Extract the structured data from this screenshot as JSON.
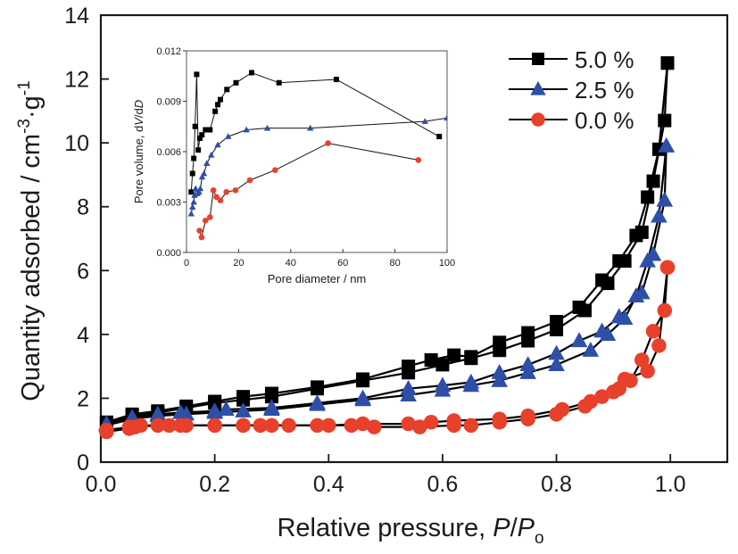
{
  "chart_data": [
    {
      "type": "line",
      "id": "main",
      "title": "",
      "xlabel": "Relative pressure, P/Po",
      "xlabel_parts": {
        "prefix": "Relative pressure, ",
        "p": "P",
        "slash": "/",
        "p2": "P",
        "sub": "o"
      },
      "ylabel": "Quantity adsorbed / cm-3·g-1",
      "ylabel_parts": {
        "main": "Quantity adsorbed / cm",
        "sup1": "-3",
        "mid": "·g",
        "sup2": "-1"
      },
      "xlim": [
        0,
        1.1
      ],
      "ylim": [
        0,
        14
      ],
      "xticks": [
        0.0,
        0.2,
        0.4,
        0.6,
        0.8,
        1.0
      ],
      "xtick_labels": [
        "0.0",
        "0.2",
        "0.4",
        "0.6",
        "0.8",
        "1.0"
      ],
      "yticks": [
        0,
        2,
        4,
        6,
        8,
        10,
        12,
        14
      ],
      "ytick_labels": [
        "0",
        "2",
        "4",
        "6",
        "8",
        "10",
        "12",
        "14"
      ],
      "grid": false,
      "legend_position": "top-right",
      "series": [
        {
          "name": "5.0 %",
          "marker": "square",
          "color": "#000000",
          "adsorption": [
            [
              0.01,
              1.2
            ],
            [
              0.055,
              1.45
            ],
            [
              0.1,
              1.55
            ],
            [
              0.15,
              1.7
            ],
            [
              0.2,
              1.85
            ],
            [
              0.25,
              1.95
            ],
            [
              0.3,
              2.05
            ],
            [
              0.38,
              2.3
            ],
            [
              0.46,
              2.55
            ],
            [
              0.54,
              2.8
            ],
            [
              0.6,
              3.05
            ],
            [
              0.65,
              3.25
            ],
            [
              0.7,
              3.5
            ],
            [
              0.75,
              3.8
            ],
            [
              0.8,
              4.15
            ],
            [
              0.85,
              4.75
            ],
            [
              0.89,
              5.6
            ],
            [
              0.92,
              6.3
            ],
            [
              0.95,
              7.2
            ],
            [
              0.97,
              8.8
            ],
            [
              0.99,
              10.7
            ],
            [
              0.995,
              12.5
            ]
          ],
          "desorption": [
            [
              0.995,
              12.5
            ],
            [
              0.98,
              9.8
            ],
            [
              0.96,
              8.3
            ],
            [
              0.94,
              7.1
            ],
            [
              0.91,
              6.3
            ],
            [
              0.88,
              5.7
            ],
            [
              0.84,
              4.85
            ],
            [
              0.8,
              4.4
            ],
            [
              0.75,
              4.05
            ],
            [
              0.7,
              3.75
            ],
            [
              0.65,
              3.3
            ],
            [
              0.62,
              3.35
            ],
            [
              0.58,
              3.2
            ],
            [
              0.54,
              3.0
            ],
            [
              0.46,
              2.6
            ],
            [
              0.38,
              2.35
            ],
            [
              0.3,
              2.15
            ],
            [
              0.25,
              2.05
            ],
            [
              0.2,
              1.9
            ],
            [
              0.15,
              1.75
            ],
            [
              0.1,
              1.6
            ],
            [
              0.055,
              1.5
            ],
            [
              0.01,
              1.25
            ]
          ]
        },
        {
          "name": "2.5 %",
          "marker": "triangle",
          "color": "#2e4fa8",
          "adsorption": [
            [
              0.01,
              1.15
            ],
            [
              0.055,
              1.35
            ],
            [
              0.1,
              1.45
            ],
            [
              0.15,
              1.5
            ],
            [
              0.2,
              1.55
            ],
            [
              0.25,
              1.6
            ],
            [
              0.3,
              1.65
            ],
            [
              0.38,
              1.8
            ],
            [
              0.46,
              1.95
            ],
            [
              0.54,
              2.1
            ],
            [
              0.6,
              2.25
            ],
            [
              0.65,
              2.4
            ],
            [
              0.7,
              2.55
            ],
            [
              0.75,
              2.8
            ],
            [
              0.8,
              3.05
            ],
            [
              0.86,
              3.5
            ],
            [
              0.89,
              4.0
            ],
            [
              0.92,
              4.5
            ],
            [
              0.94,
              5.2
            ],
            [
              0.96,
              6.3
            ],
            [
              0.98,
              7.7
            ],
            [
              0.993,
              9.9
            ]
          ],
          "desorption": [
            [
              0.993,
              9.9
            ],
            [
              0.99,
              8.2
            ],
            [
              0.97,
              6.5
            ],
            [
              0.95,
              5.3
            ],
            [
              0.91,
              4.55
            ],
            [
              0.88,
              4.1
            ],
            [
              0.84,
              3.8
            ],
            [
              0.8,
              3.4
            ],
            [
              0.75,
              3.05
            ],
            [
              0.7,
              2.8
            ],
            [
              0.65,
              2.5
            ],
            [
              0.6,
              2.4
            ],
            [
              0.54,
              2.3
            ],
            [
              0.46,
              2.0
            ],
            [
              0.38,
              1.85
            ],
            [
              0.3,
              1.7
            ],
            [
              0.22,
              1.65
            ],
            [
              0.2,
              1.6
            ],
            [
              0.14,
              1.55
            ],
            [
              0.1,
              1.5
            ],
            [
              0.055,
              1.4
            ],
            [
              0.01,
              1.2
            ]
          ]
        },
        {
          "name": "0.0 %",
          "marker": "circle",
          "color": "#e8402a",
          "adsorption": [
            [
              0.01,
              0.95
            ],
            [
              0.05,
              1.05
            ],
            [
              0.06,
              1.1
            ],
            [
              0.1,
              1.15
            ],
            [
              0.15,
              1.15
            ],
            [
              0.2,
              1.15
            ],
            [
              0.25,
              1.15
            ],
            [
              0.3,
              1.15
            ],
            [
              0.38,
              1.15
            ],
            [
              0.44,
              1.15
            ],
            [
              0.48,
              1.1
            ],
            [
              0.56,
              1.1
            ],
            [
              0.62,
              1.15
            ],
            [
              0.65,
              1.15
            ],
            [
              0.7,
              1.25
            ],
            [
              0.75,
              1.35
            ],
            [
              0.8,
              1.5
            ],
            [
              0.85,
              1.75
            ],
            [
              0.88,
              2.05
            ],
            [
              0.91,
              2.3
            ],
            [
              0.93,
              2.55
            ],
            [
              0.95,
              3.2
            ],
            [
              0.97,
              4.1
            ],
            [
              0.99,
              4.75
            ],
            [
              0.995,
              6.1
            ]
          ],
          "desorption": [
            [
              0.995,
              6.1
            ],
            [
              0.98,
              3.65
            ],
            [
              0.96,
              2.85
            ],
            [
              0.92,
              2.6
            ],
            [
              0.9,
              2.2
            ],
            [
              0.86,
              1.9
            ],
            [
              0.81,
              1.65
            ],
            [
              0.75,
              1.45
            ],
            [
              0.7,
              1.35
            ],
            [
              0.62,
              1.3
            ],
            [
              0.58,
              1.25
            ],
            [
              0.54,
              1.2
            ],
            [
              0.46,
              1.2
            ],
            [
              0.4,
              1.15
            ],
            [
              0.33,
              1.15
            ],
            [
              0.28,
              1.15
            ],
            [
              0.25,
              1.15
            ],
            [
              0.2,
              1.15
            ],
            [
              0.14,
              1.15
            ],
            [
              0.12,
              1.15
            ],
            [
              0.07,
              1.15
            ],
            [
              0.05,
              1.1
            ],
            [
              0.01,
              1.0
            ]
          ]
        }
      ]
    },
    {
      "type": "line",
      "id": "inset",
      "title": "",
      "xlabel": "Pore diameter / nm",
      "ylabel": "Pore volume, dV/dD",
      "ylabel_parts": {
        "main": "Pore volume, d",
        "v": "V",
        "slash": "/d",
        "d": "D"
      },
      "xlim": [
        0,
        100
      ],
      "ylim": [
        0,
        0.012
      ],
      "xticks": [
        0,
        20,
        40,
        60,
        80,
        100
      ],
      "xtick_labels": [
        "0",
        "20",
        "40",
        "60",
        "80",
        "100"
      ],
      "yticks": [
        0,
        0.003,
        0.006,
        0.009,
        0.012
      ],
      "ytick_labels": [
        "0.000",
        "0.003",
        "0.006",
        "0.009",
        "0.012"
      ],
      "grid": false,
      "legend_position": "none",
      "series": [
        {
          "name": "5.0 %",
          "marker": "square",
          "color": "#000000",
          "points": [
            [
              1.8,
              0.0036
            ],
            [
              2.3,
              0.0047
            ],
            [
              2.8,
              0.0056
            ],
            [
              3.3,
              0.0075
            ],
            [
              3.9,
              0.0106
            ],
            [
              4.5,
              0.0061
            ],
            [
              5.1,
              0.0068
            ],
            [
              5.9,
              0.007
            ],
            [
              7.3,
              0.0073
            ],
            [
              9,
              0.0073
            ],
            [
              11,
              0.0084
            ],
            [
              12,
              0.0088
            ],
            [
              13,
              0.0091
            ],
            [
              15.5,
              0.0097
            ],
            [
              19,
              0.0101
            ],
            [
              25,
              0.0107
            ],
            [
              35.5,
              0.0101
            ],
            [
              57.5,
              0.0103
            ],
            [
              97,
              0.0069
            ]
          ]
        },
        {
          "name": "2.5 %",
          "marker": "triangle",
          "color": "#2e4fa8",
          "points": [
            [
              1.8,
              0.0023
            ],
            [
              2.3,
              0.0027
            ],
            [
              2.8,
              0.003
            ],
            [
              3.1,
              0.0034
            ],
            [
              3.5,
              0.0038
            ],
            [
              4.2,
              0.0035
            ],
            [
              4.8,
              0.0036
            ],
            [
              5.3,
              0.0038
            ],
            [
              6,
              0.0045
            ],
            [
              6.7,
              0.0047
            ],
            [
              7.8,
              0.0053
            ],
            [
              9.5,
              0.0058
            ],
            [
              12,
              0.0064
            ],
            [
              16,
              0.0069
            ],
            [
              23,
              0.0073
            ],
            [
              31,
              0.0074
            ],
            [
              47.5,
              0.0074
            ],
            [
              91.5,
              0.0078
            ],
            [
              100,
              0.008
            ]
          ]
        },
        {
          "name": "0.0 %",
          "marker": "circle",
          "color": "#e8402a",
          "points": [
            [
              5,
              0.0013
            ],
            [
              5.8,
              0.0009
            ],
            [
              7.3,
              0.0019
            ],
            [
              9,
              0.0021
            ],
            [
              10.3,
              0.0037
            ],
            [
              11.5,
              0.0033
            ],
            [
              13,
              0.0031
            ],
            [
              15.3,
              0.0036
            ],
            [
              18.8,
              0.0037
            ],
            [
              24.3,
              0.0043
            ],
            [
              34,
              0.0049
            ],
            [
              54.3,
              0.0065
            ],
            [
              89,
              0.0055
            ]
          ]
        }
      ]
    }
  ]
}
